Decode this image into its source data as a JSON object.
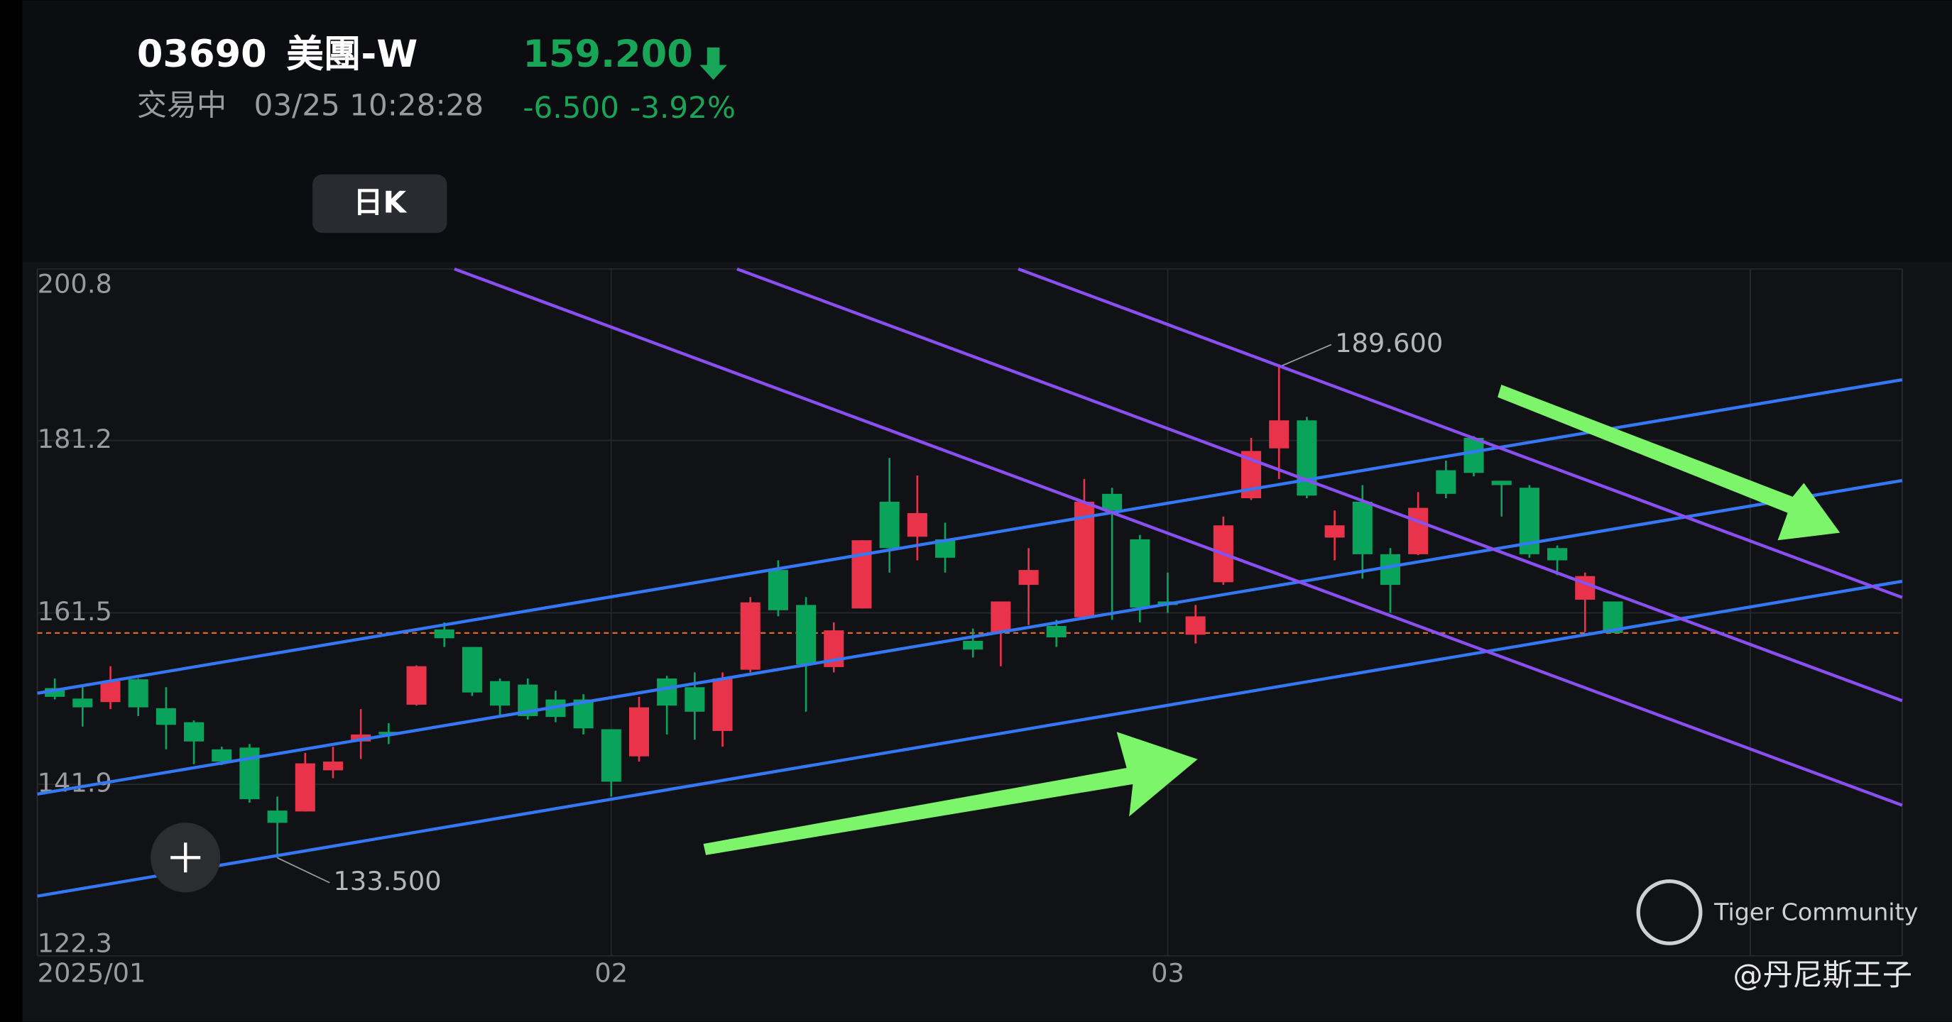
{
  "header": {
    "code": "03690",
    "name": "美團-W",
    "price": {
      "value": 159.2,
      "label": "159.200"
    },
    "status": "交易中",
    "time": "03/25 10:28:28",
    "change": "-6.500",
    "change_pct": "-3.92%"
  },
  "period_button": "日K",
  "chart_data": {
    "type": "candlestick",
    "categories": [
      "2025/01",
      null,
      null,
      null,
      null,
      null,
      null,
      null,
      null,
      null,
      null,
      null,
      null,
      null,
      null,
      null,
      null,
      null,
      null,
      null,
      "02",
      null,
      null,
      null,
      null,
      null,
      null,
      null,
      null,
      null,
      null,
      null,
      null,
      null,
      null,
      null,
      null,
      null,
      null,
      null,
      "03",
      null,
      null,
      null,
      null,
      null,
      null,
      null,
      null,
      null,
      null,
      null,
      null,
      null,
      null,
      null,
      null
    ],
    "open": [
      152.9,
      151.7,
      151.3,
      153.9,
      150.6,
      149.0,
      145.9,
      146.1,
      138.9,
      138.8,
      143.5,
      146.8,
      147.9,
      151.0,
      159.6,
      157.6,
      153.7,
      153.3,
      151.6,
      151.6,
      148.2,
      145.1,
      154.0,
      153.0,
      148.0,
      155.0,
      166.4,
      162.4,
      155.3,
      162.0,
      174.2,
      170.2,
      169.9,
      158.3,
      159.3,
      164.7,
      160.0,
      161.0,
      175.1,
      169.9,
      162.8,
      159.0,
      165.0,
      174.6,
      180.3,
      183.5,
      170.1,
      174.2,
      168.2,
      168.2,
      177.8,
      181.5,
      176.6,
      175.8,
      168.9,
      163.0,
      162.8
    ],
    "high": [
      154.0,
      153.0,
      155.4,
      154.0,
      153.0,
      149.2,
      146.2,
      146.5,
      140.5,
      145.5,
      146.2,
      150.5,
      148.9,
      155.5,
      160.4,
      157.6,
      154.0,
      154.0,
      152.6,
      152.2,
      148.2,
      151.9,
      154.3,
      154.7,
      154.7,
      163.3,
      167.5,
      163.3,
      160.4,
      169.8,
      179.2,
      177.2,
      171.8,
      159.7,
      162.8,
      168.9,
      160.7,
      176.8,
      175.8,
      170.4,
      166.1,
      162.4,
      172.5,
      181.5,
      189.6,
      183.9,
      173.2,
      176.1,
      168.9,
      175.3,
      178.9,
      181.7,
      176.6,
      176.1,
      169.2,
      166.1,
      162.8
    ],
    "low": [
      151.6,
      148.5,
      150.5,
      149.7,
      145.9,
      144.2,
      144.1,
      139.8,
      133.5,
      138.8,
      142.6,
      144.8,
      146.5,
      150.9,
      157.6,
      152.0,
      149.7,
      149.3,
      149.0,
      147.6,
      140.5,
      144.5,
      147.6,
      147.0,
      146.2,
      154.7,
      161.1,
      150.2,
      154.7,
      162.0,
      166.1,
      167.5,
      166.1,
      156.4,
      155.4,
      160.1,
      157.6,
      160.7,
      160.7,
      160.4,
      161.5,
      158.0,
      164.7,
      174.4,
      176.8,
      174.6,
      167.5,
      165.4,
      161.5,
      168.1,
      174.6,
      177.1,
      172.5,
      167.8,
      165.8,
      159.3,
      159.2
    ],
    "close": [
      151.9,
      150.7,
      153.7,
      150.7,
      148.7,
      146.8,
      144.5,
      140.2,
      137.5,
      144.3,
      144.5,
      147.6,
      147.6,
      155.4,
      158.6,
      152.4,
      150.9,
      149.7,
      149.6,
      148.3,
      142.2,
      150.7,
      150.9,
      150.2,
      154.0,
      162.7,
      161.8,
      155.6,
      159.5,
      169.8,
      168.9,
      172.9,
      167.8,
      157.3,
      162.8,
      166.4,
      158.7,
      174.2,
      173.2,
      162.1,
      162.4,
      161.1,
      171.5,
      180.0,
      183.5,
      174.9,
      171.5,
      168.2,
      164.7,
      173.5,
      175.1,
      177.5,
      176.1,
      168.2,
      167.5,
      165.7,
      159.2
    ],
    "up_color": "#e8334a",
    "down_color": "#0aa35c",
    "ylim": [
      122.3,
      200.8
    ],
    "yticks": [
      200.8,
      181.2,
      161.5,
      141.9,
      122.3
    ],
    "grid": true,
    "annotations": [
      {
        "value": 189.6,
        "label": "189.600"
      },
      {
        "value": 133.5,
        "label": "133.500"
      }
    ]
  },
  "watermark": "Tiger Community",
  "author": "@丹尼斯王子"
}
